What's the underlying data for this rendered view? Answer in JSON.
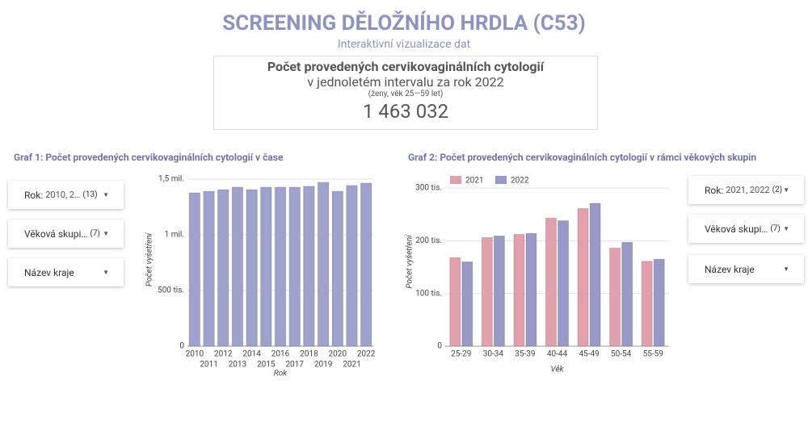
{
  "header": {
    "title": "SCREENING DĚLOŽNÍHO HRDLA (C53)",
    "subtitle": "Interaktivní vizualizace dat"
  },
  "kpi": {
    "title": "Počet provedených cervikovaginálních cytologií",
    "line2": "v jednoletém intervalu za rok 2022",
    "note": "(ženy, věk 25—59 let)",
    "value": "1 463 032"
  },
  "filters_left": [
    {
      "label": "Rok:",
      "value": "2010, 2…",
      "count": "(13)"
    },
    {
      "label": "Věková skupi…",
      "count": "(7)"
    },
    {
      "label": "Název kraje"
    }
  ],
  "filters_right": [
    {
      "label": "Rok:",
      "value": "2021, 2022",
      "count": "(2)"
    },
    {
      "label": "Věková skupi…",
      "count": "(7)"
    },
    {
      "label": "Název kraje"
    }
  ],
  "chart_data": [
    {
      "type": "bar",
      "title": "Graf 1: Počet provedených cervikovaginálních cytologií v čase",
      "x_label": "Rok",
      "y_label": "Počet vyšetření",
      "categories": [
        "2010",
        "2011",
        "2012",
        "2013",
        "2014",
        "2015",
        "2016",
        "2017",
        "2018",
        "2019",
        "2020",
        "2021",
        "2022"
      ],
      "values": [
        1376000,
        1390000,
        1405000,
        1427000,
        1405000,
        1427000,
        1427000,
        1427000,
        1435000,
        1470000,
        1390000,
        1442000,
        1463032
      ],
      "color": "#9fa3cc",
      "ylim": [
        0,
        1550000
      ],
      "yticks": [
        0,
        {
          "value": 500000,
          "label": "500 tis."
        },
        {
          "value": 1000000,
          "label": "1 mil."
        },
        {
          "value": 1500000,
          "label": "1,5 mil."
        }
      ],
      "grid": true
    },
    {
      "type": "bar",
      "title": "Graf 2: Počet provedených cervikovaginálních cytologií v rámci věkových skupin",
      "x_label": "Věk",
      "y_label": "Počet vyšetření",
      "categories": [
        "25-29",
        "30-34",
        "35-39",
        "40-44",
        "45-49",
        "50-54",
        "55-59"
      ],
      "series": [
        {
          "name": "2021",
          "color": "#e29fad",
          "values": [
            168000,
            206000,
            212000,
            243000,
            261000,
            186000,
            161000
          ]
        },
        {
          "name": "2022",
          "color": "#9999c5",
          "values": [
            160000,
            209000,
            214000,
            238000,
            271000,
            197000,
            165000
          ]
        }
      ],
      "ylim": [
        0,
        320000
      ],
      "yticks": [
        0,
        {
          "value": 100000,
          "label": "100 tis."
        },
        {
          "value": 200000,
          "label": "200 tis."
        },
        {
          "value": 300000,
          "label": "300 tis."
        }
      ],
      "grid": true,
      "legend": "top-left"
    }
  ]
}
